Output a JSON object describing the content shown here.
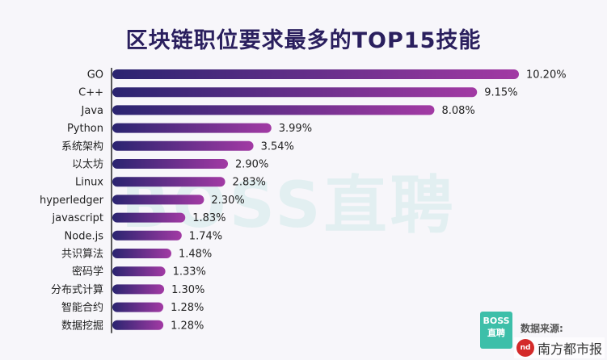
{
  "chart_data": {
    "type": "bar",
    "orientation": "horizontal",
    "title": "区块链职位要求最多的TOP15技能",
    "categories": [
      "GO",
      "C++",
      "Java",
      "Python",
      "系统架构",
      "以太坊",
      "Linux",
      "hyperledger",
      "javascript",
      "Node.js",
      "共识算法",
      "密码学",
      "分布式计算",
      "智能合约",
      "数据挖掘"
    ],
    "values": [
      10.2,
      9.15,
      8.08,
      3.99,
      3.54,
      2.9,
      2.83,
      2.3,
      1.83,
      1.74,
      1.48,
      1.33,
      1.3,
      1.28,
      1.28
    ],
    "value_labels": [
      "10.20%",
      "9.15%",
      "8.08%",
      "3.99%",
      "3.54%",
      "2.90%",
      "2.83%",
      "2.30%",
      "1.83%",
      "1.74%",
      "1.48%",
      "1.33%",
      "1.30%",
      "1.28%",
      "1.28%"
    ],
    "xlim": [
      0,
      10.5
    ],
    "xlabel": "",
    "ylabel": "",
    "grid": false
  },
  "colors": {
    "bar_start": "#2a2470",
    "bar_end": "#a23aa4",
    "axis": "#222222"
  },
  "watermark": "BOSS直聘",
  "source": {
    "logo_text": "BOSS直聘",
    "label": "数据来源:",
    "publisher_logo": "nd",
    "publisher": "南方都市报"
  }
}
